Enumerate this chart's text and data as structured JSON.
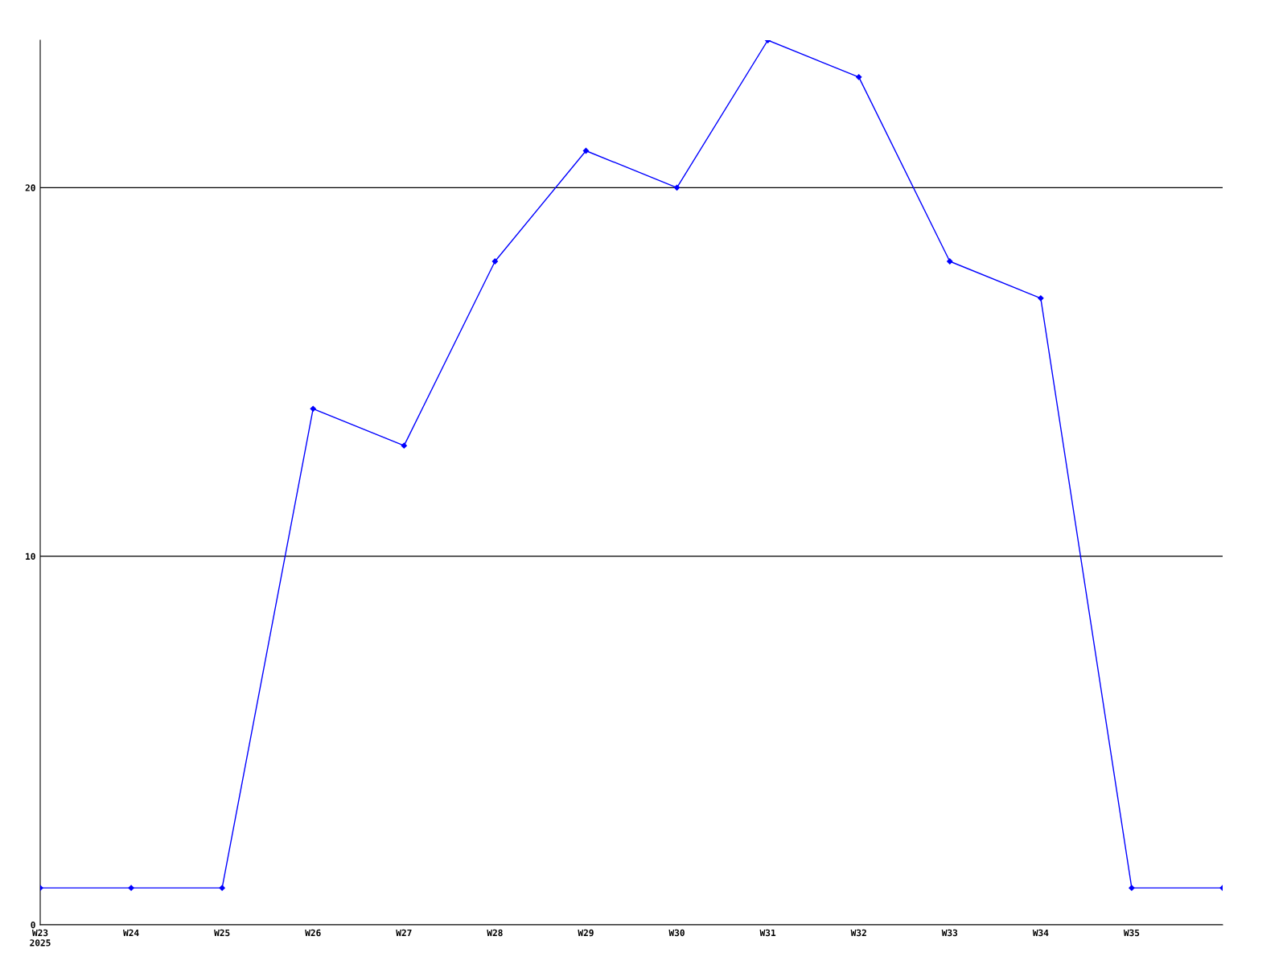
{
  "chart_data": {
    "type": "line",
    "categories": [
      "W23\n2025",
      "W24",
      "W25",
      "W26",
      "W27",
      "W28",
      "W29",
      "W30",
      "W31",
      "W32",
      "W33",
      "W34",
      "W35",
      null
    ],
    "series": [
      {
        "color": "#0000ff",
        "values": [
          1,
          1,
          1,
          14,
          13,
          18,
          21,
          20,
          24,
          23,
          18,
          17,
          1,
          1
        ]
      }
    ],
    "ylim": [
      0,
      24
    ],
    "yticks": [
      0,
      10,
      20
    ],
    "grid": "y",
    "marker": "diamond",
    "line_style": "solid"
  }
}
